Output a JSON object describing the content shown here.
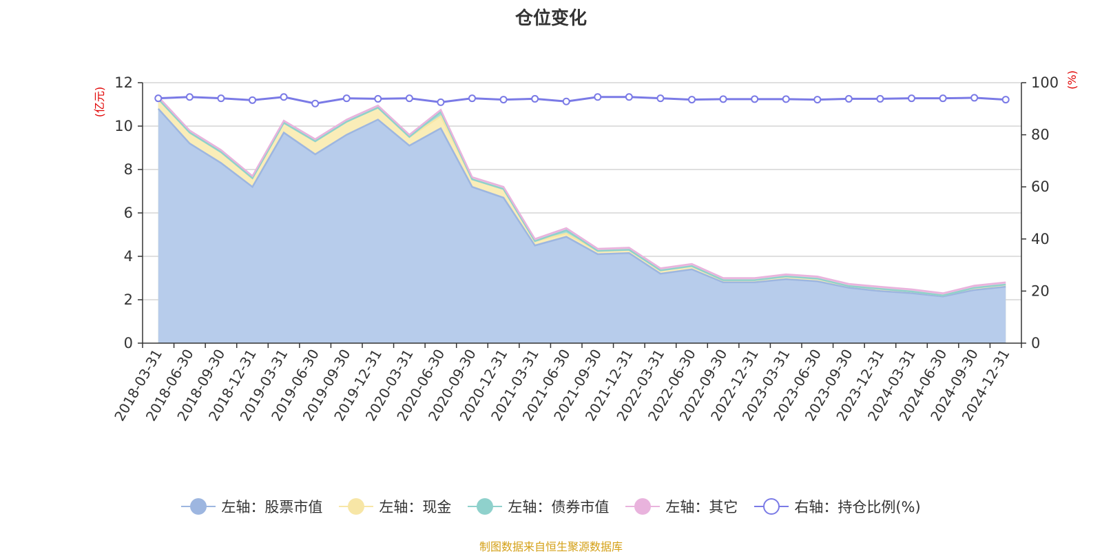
{
  "title": "仓位变化",
  "source": "制图数据来自恒生聚源数据库",
  "chart_data": {
    "type": "area",
    "title": "仓位变化",
    "left_axis": {
      "label": "(亿元)",
      "min": 0,
      "max": 12,
      "ticks": [
        0,
        2,
        4,
        6,
        8,
        10,
        12
      ]
    },
    "right_axis": {
      "label": "(%)",
      "min": 0,
      "max": 100,
      "ticks": [
        0,
        20,
        40,
        60,
        80,
        100
      ]
    },
    "grid": true,
    "legend_position": "bottom",
    "categories": [
      "2018-03-31",
      "2018-06-30",
      "2018-09-30",
      "2018-12-31",
      "2019-03-31",
      "2019-06-30",
      "2019-09-30",
      "2019-12-31",
      "2020-03-31",
      "2020-06-30",
      "2020-09-30",
      "2020-12-31",
      "2021-03-31",
      "2021-06-30",
      "2021-09-30",
      "2021-12-31",
      "2022-03-31",
      "2022-06-30",
      "2022-09-30",
      "2022-12-31",
      "2023-03-31",
      "2023-06-30",
      "2023-09-30",
      "2023-12-31",
      "2024-03-31",
      "2024-06-30",
      "2024-09-30",
      "2024-12-31"
    ],
    "series": [
      {
        "name": "左轴：股票市值",
        "axis": "left",
        "stack": true,
        "color": "#9db6e0",
        "fill": "#b7cceb",
        "values": [
          10.8,
          9.2,
          8.3,
          7.2,
          9.7,
          8.7,
          9.6,
          10.3,
          9.1,
          9.9,
          7.2,
          6.7,
          4.5,
          4.9,
          4.1,
          4.15,
          3.2,
          3.4,
          2.8,
          2.8,
          2.95,
          2.85,
          2.55,
          2.4,
          2.3,
          2.15,
          2.45,
          2.6
        ]
      },
      {
        "name": "左轴：现金",
        "axis": "left",
        "stack": true,
        "color": "#f7e6a6",
        "fill": "#faedb8",
        "values": [
          0.45,
          0.5,
          0.5,
          0.4,
          0.45,
          0.6,
          0.6,
          0.55,
          0.4,
          0.55,
          0.35,
          0.4,
          0.2,
          0.15,
          0.15,
          0.15,
          0.15,
          0.15,
          0.1,
          0.1,
          0.12,
          0.12,
          0.08,
          0.1,
          0.08,
          0.05,
          0.1,
          0.1
        ]
      },
      {
        "name": "左轴：债券市值",
        "axis": "left",
        "stack": true,
        "color": "#8fd1cc",
        "fill": "#a8ddd8",
        "values": [
          0,
          0,
          0,
          0,
          0,
          0,
          0,
          0,
          0,
          0.2,
          0,
          0,
          0,
          0.15,
          0,
          0,
          0,
          0,
          0,
          0,
          0,
          0,
          0,
          0,
          0,
          0,
          0,
          0
        ]
      },
      {
        "name": "左轴：其它",
        "axis": "left",
        "stack": true,
        "color": "#e9b3dd",
        "fill": "#efc4e6",
        "values": [
          0.1,
          0.1,
          0.1,
          0.1,
          0.1,
          0.1,
          0.1,
          0.1,
          0.1,
          0.1,
          0.1,
          0.1,
          0.1,
          0.1,
          0.1,
          0.1,
          0.1,
          0.1,
          0.1,
          0.1,
          0.1,
          0.1,
          0.1,
          0.1,
          0.1,
          0.1,
          0.1,
          0.1
        ]
      },
      {
        "name": "右轴：持仓比例(%)",
        "axis": "right",
        "stack": false,
        "color": "#7a7ae6",
        "values": [
          94,
          94.5,
          94,
          93.3,
          94.5,
          92,
          94,
          93.8,
          94,
          92.5,
          94,
          93.5,
          93.8,
          92.8,
          94.5,
          94.5,
          94,
          93.5,
          93.7,
          93.7,
          93.7,
          93.5,
          93.8,
          93.8,
          94,
          94,
          94.2,
          93.5
        ]
      }
    ]
  }
}
